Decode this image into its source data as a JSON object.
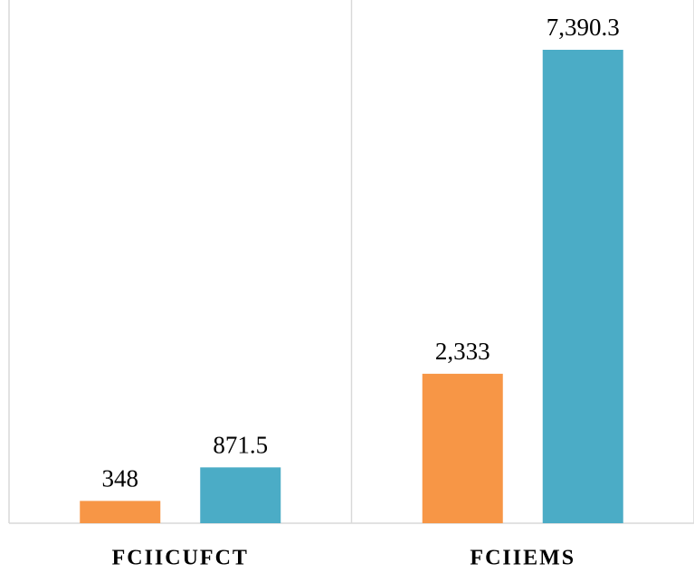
{
  "chart_data": {
    "type": "bar",
    "categories": [
      "FCIICUFCT",
      "FCIIEMS"
    ],
    "series": [
      {
        "color": "#F79646",
        "values": [
          348,
          2333
        ],
        "value_labels": [
          "348",
          "2,333"
        ]
      },
      {
        "color": "#4BACC6",
        "values": [
          871.5,
          7390.3
        ],
        "value_labels": [
          "871.5",
          "7,390.3"
        ]
      }
    ]
  }
}
